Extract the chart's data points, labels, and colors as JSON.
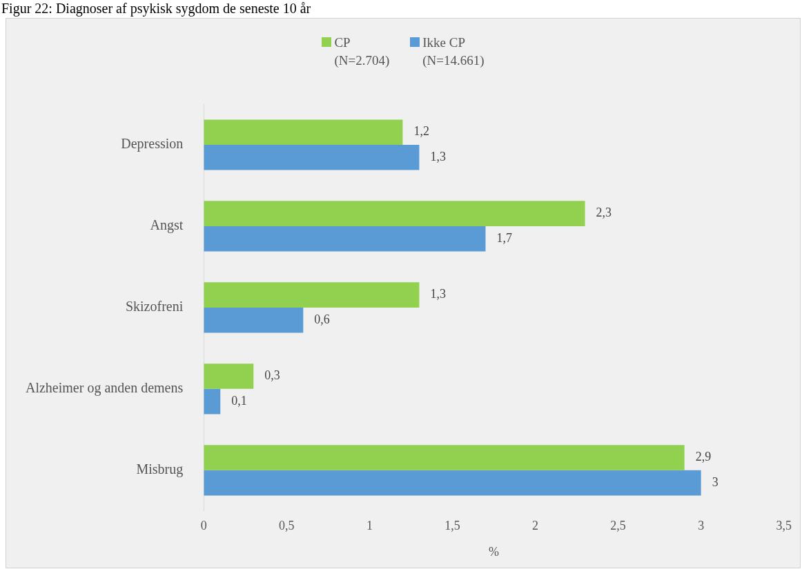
{
  "chart_data": {
    "type": "bar",
    "orientation": "horizontal",
    "title": "Figur 22: Diagnoser af psykisk sygdom de seneste 10 år",
    "xlabel": "%",
    "categories": [
      "Depression",
      "Angst",
      "Skizofreni",
      "Alzheimer og anden demens",
      "Misbrug"
    ],
    "series": [
      {
        "name": "CP\n(N=2.704)",
        "color": "#92d050",
        "values": [
          1.2,
          2.3,
          1.3,
          0.3,
          2.9
        ],
        "value_labels": [
          "1,2",
          "2,3",
          "1,3",
          "0,3",
          "2,9"
        ]
      },
      {
        "name": "Ikke CP\n(N=14.661)",
        "color": "#5b9bd5",
        "values": [
          1.3,
          1.7,
          0.6,
          0.1,
          3
        ],
        "value_labels": [
          "1,3",
          "1,7",
          "0,6",
          "0,1",
          "3"
        ]
      }
    ],
    "xlim": [
      0,
      3.5
    ],
    "xticks": [
      0,
      {
        "value": 0.5,
        "label": "0,5"
      },
      1,
      {
        "value": 1.5,
        "label": "1,5"
      },
      2,
      {
        "value": 2.5,
        "label": "2,5"
      },
      3,
      {
        "value": 3.5,
        "label": "3,5"
      }
    ],
    "grid": false,
    "legend": "top"
  }
}
